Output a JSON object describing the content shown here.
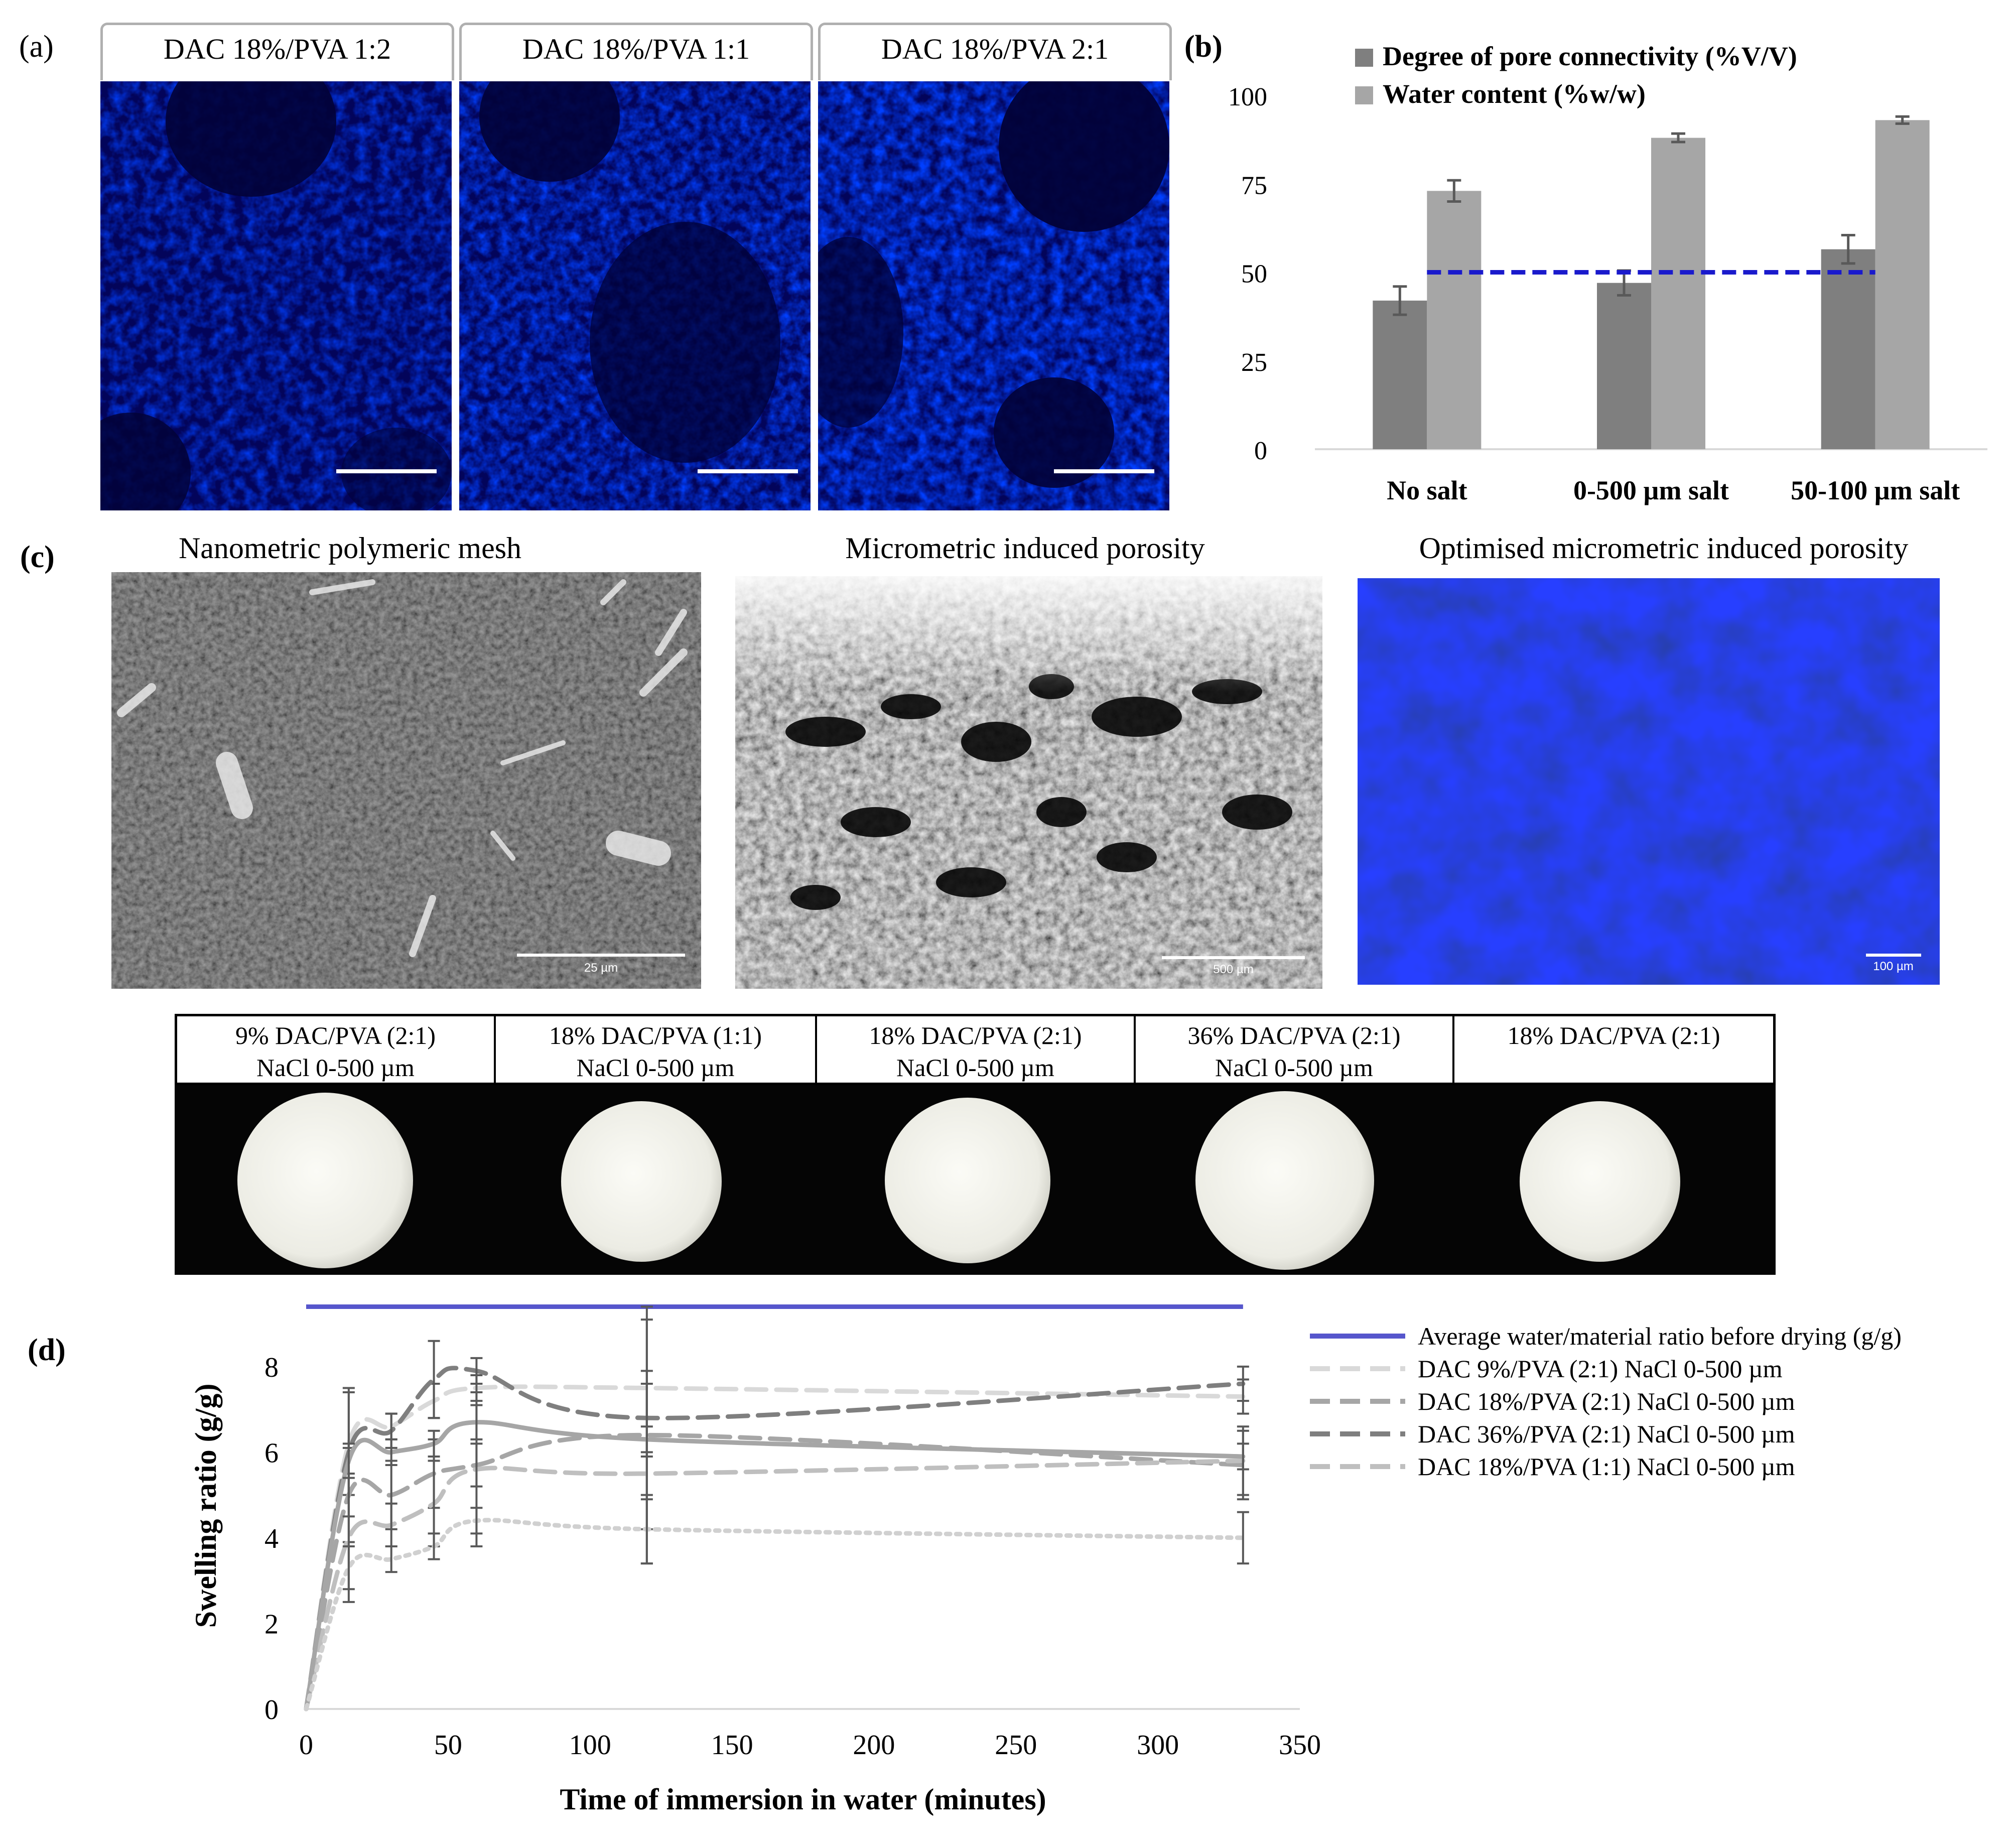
{
  "panel_a": {
    "label": "(a)",
    "samples": [
      {
        "title": "DAC 18%/PVA 1:2"
      },
      {
        "title": "DAC 18%/PVA 1:1"
      },
      {
        "title": "DAC 18%/PVA 2:1"
      }
    ]
  },
  "panel_b": {
    "label": "(b)"
  },
  "panel_c": {
    "label": "(c)",
    "images": [
      {
        "title": "Nanometric polymeric mesh",
        "scale_text": "25 µm"
      },
      {
        "title": "Micrometric induced porosity",
        "scale_text": "500 µm"
      },
      {
        "title": "Optimised micrometric induced porosity",
        "scale_text": "100 µm"
      }
    ],
    "samples": [
      {
        "line1": "9% DAC/PVA (2:1)",
        "line2": "NaCl 0-500 µm"
      },
      {
        "line1": "18% DAC/PVA (1:1)",
        "line2": "NaCl 0-500 µm"
      },
      {
        "line1": "18% DAC/PVA (2:1)",
        "line2": "NaCl 0-500 µm"
      },
      {
        "line1": "36% DAC/PVA (2:1)",
        "line2": "NaCl 0-500 µm"
      },
      {
        "line1": "18% DAC/PVA (2:1)",
        "line2": ""
      }
    ]
  },
  "panel_d": {
    "label": "(d)"
  },
  "chart_data": [
    {
      "type": "bar",
      "categories": [
        "No salt",
        "0-500 µm salt",
        "50-100 µm salt"
      ],
      "series": [
        {
          "name": "Degree of pore connectivity (%V/V)",
          "color": "#7f7f7f",
          "values": [
            42,
            47,
            56.5
          ],
          "errors": [
            4,
            3.5,
            4
          ]
        },
        {
          "name": "Water content (%w/w)",
          "color": "#a6a6a6",
          "values": [
            73,
            88,
            93
          ],
          "errors": [
            3,
            1.2,
            1
          ]
        }
      ],
      "reference_line": {
        "value": 50,
        "color": "#1a1acc",
        "style": "dashed"
      },
      "yticks": [
        0,
        25,
        50,
        75,
        100
      ],
      "ylim": [
        0,
        100
      ],
      "legend": "top",
      "grid": false
    },
    {
      "type": "line",
      "xlabel": "Time of immersion in water (minutes)",
      "ylabel": "Swelling ratio (g/g)",
      "xlim": [
        0,
        350
      ],
      "ylim": [
        0,
        9.5
      ],
      "xticks": [
        0,
        50,
        100,
        150,
        200,
        250,
        300,
        350
      ],
      "yticks": [
        0,
        2,
        4,
        6,
        8
      ],
      "legend": "right",
      "x": [
        0,
        15,
        30,
        45,
        60,
        120,
        330
      ],
      "reference_line": {
        "name": "Average water/material ratio before drying (g/g)",
        "value": 9.4,
        "x_range": [
          0,
          330
        ],
        "color": "#5656cc"
      },
      "series": [
        {
          "name": "DAC 9%/PVA (2:1) NaCl 0-500 µm",
          "color": "#d9d9d9",
          "style": "dashed",
          "values": [
            0,
            6.2,
            6.6,
            7.2,
            7.5,
            7.5,
            7.3
          ],
          "errors": [
            0,
            1.2,
            0.3,
            0.4,
            0.3,
            1.6,
            0.4
          ]
        },
        {
          "name": "DAC 18%/PVA (2:1) NaCl 0-500 µm",
          "color": "#a6a6a6",
          "style": "dashed",
          "values": [
            0,
            5.0,
            5.0,
            5.5,
            5.7,
            6.4,
            5.7
          ],
          "errors": [
            0,
            1.1,
            0.8,
            0.8,
            0.5,
            1.5,
            0.8
          ]
        },
        {
          "name": "DAC 36%/PVA (2:1) NaCl  0-500 µm",
          "color": "#7f7f7f",
          "style": "dashed",
          "values": [
            0,
            6.0,
            6.5,
            7.7,
            7.9,
            6.8,
            7.6
          ],
          "errors": [
            0,
            1.5,
            0.4,
            0.9,
            0.3,
            2.6,
            0.4
          ]
        },
        {
          "name": "DAC 18%/PVA (1:1) NaCl  0-500 µm",
          "color": "#bfbfbf",
          "style": "dashed",
          "values": [
            0,
            4.0,
            4.3,
            4.8,
            5.6,
            5.5,
            5.8
          ],
          "errors": [
            0,
            1.5,
            0.5,
            1.0,
            1.8,
            2.1,
            0.8
          ]
        },
        {
          "color": "#a6a6a6",
          "style": "solid",
          "values": [
            0,
            5.8,
            6.0,
            6.2,
            6.7,
            6.3,
            5.9
          ],
          "errors": [
            0,
            0.4,
            0.3,
            0.3,
            0.4,
            0.3,
            0.3
          ]
        },
        {
          "color": "#d0d0d0",
          "style": "dotted",
          "values": [
            0,
            3.3,
            3.5,
            3.8,
            4.4,
            4.2,
            4.0
          ],
          "errors": [
            0,
            0.5,
            0.3,
            0.3,
            0.3,
            0.8,
            0.6
          ]
        }
      ]
    }
  ]
}
